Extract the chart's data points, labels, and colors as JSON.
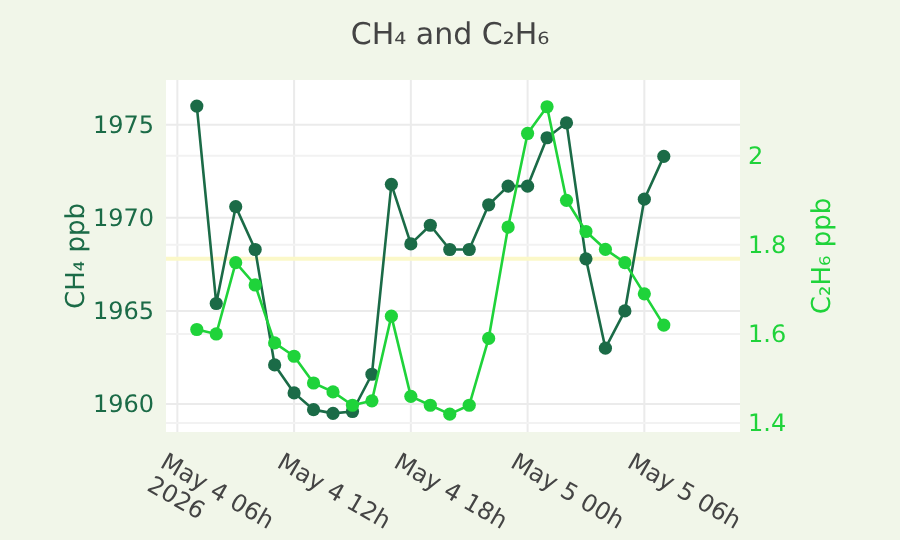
{
  "chart_data": {
    "type": "line",
    "title": "CH₄ and C₂H₆",
    "ylabel": "CH₄ ppb",
    "y2label": "C₂H₆ ppb",
    "x": [
      "2026-05-04T07:00",
      "2026-05-04T08:00",
      "2026-05-04T09:00",
      "2026-05-04T10:00",
      "2026-05-04T11:00",
      "2026-05-04T12:00",
      "2026-05-04T13:00",
      "2026-05-04T14:00",
      "2026-05-04T15:00",
      "2026-05-04T16:00",
      "2026-05-04T17:00",
      "2026-05-04T18:00",
      "2026-05-04T19:00",
      "2026-05-04T20:00",
      "2026-05-04T21:00",
      "2026-05-04T22:00",
      "2026-05-04T23:00",
      "2026-05-05T00:00",
      "2026-05-05T01:00",
      "2026-05-05T02:00",
      "2026-05-05T03:00",
      "2026-05-05T04:00",
      "2026-05-05T05:00",
      "2026-05-05T06:00",
      "2026-05-05T07:00"
    ],
    "series": [
      {
        "color": "#1b6b47",
        "values": [
          1976.0,
          1965.4,
          1970.6,
          1968.3,
          1962.1,
          1960.6,
          1959.7,
          1959.5,
          1959.6,
          1961.6,
          1971.8,
          1968.6,
          1969.6,
          1968.3,
          1968.3,
          1970.7,
          1971.7,
          1971.7,
          1974.3,
          1975.1,
          1967.8,
          1963.0,
          1965.0,
          1971.0,
          1973.3
        ]
      },
      {
        "color": "#1fd33a",
        "axis": "y2",
        "values": [
          1.61,
          1.6,
          1.76,
          1.71,
          1.58,
          1.55,
          1.49,
          1.47,
          1.44,
          1.45,
          1.64,
          1.46,
          1.44,
          1.42,
          1.44,
          1.59,
          1.84,
          2.05,
          2.11,
          1.9,
          1.83,
          1.79,
          1.76,
          1.69,
          1.62
        ]
      }
    ],
    "xlim": [
      "2026-05-04T05:25",
      "2026-05-05T10:55"
    ],
    "xticks": [
      {
        "value": "2026-05-04T06:00",
        "label": "May 4 06h\n2026"
      },
      {
        "value": "2026-05-04T12:00",
        "label": "May 4 12h"
      },
      {
        "value": "2026-05-04T18:00",
        "label": "May 4 18h"
      },
      {
        "value": "2026-05-05T00:00",
        "label": "May 5 00h"
      },
      {
        "value": "2026-05-05T06:00",
        "label": "May 5 06h"
      }
    ],
    "ylim": [
      1958.5,
      1977.4
    ],
    "yticks": [
      1960,
      1965,
      1970,
      1975
    ],
    "y2lim": [
      1.38,
      2.17
    ],
    "y2ticks": [
      1.4,
      1.6,
      1.8,
      2
    ],
    "ref_lines": [
      {
        "axis": "y",
        "value": 1967.8,
        "color": "#fbf8c8"
      }
    ],
    "grid": true,
    "marker": "circle",
    "line_style": "solid"
  }
}
